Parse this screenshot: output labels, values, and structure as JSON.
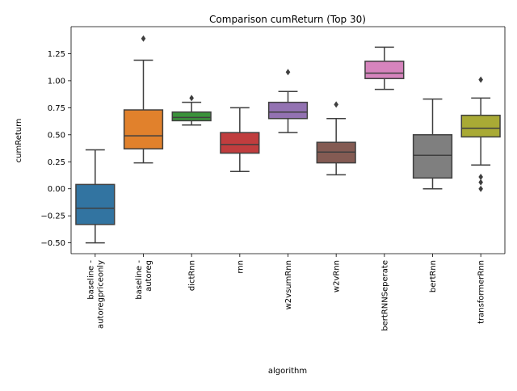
{
  "chart_data": {
    "type": "box",
    "title": "Comparison cumReturn (Top 30)",
    "xlabel": "algorithm",
    "ylabel": "cumReturn",
    "ylim": [
      -0.6,
      1.5
    ],
    "yticks": [
      -0.5,
      -0.25,
      0.0,
      0.25,
      0.5,
      0.75,
      1.0,
      1.25
    ],
    "ytick_labels": [
      "−0.50",
      "−0.25",
      "0.00",
      "0.25",
      "0.50",
      "0.75",
      "1.00",
      "1.25"
    ],
    "grid": false,
    "legend": "none",
    "categories": [
      {
        "label_lines": [
          "baseline -",
          "autoregpriceonly"
        ],
        "color": "#3274a1",
        "whisker_low": -0.5,
        "q1": -0.33,
        "median": -0.18,
        "q3": 0.04,
        "whisker_high": 0.36,
        "outliers": []
      },
      {
        "label_lines": [
          "baseline -",
          "autoreg"
        ],
        "color": "#e1812c",
        "whisker_low": 0.24,
        "q1": 0.37,
        "median": 0.49,
        "q3": 0.73,
        "whisker_high": 1.19,
        "outliers": [
          1.39
        ]
      },
      {
        "label_lines": [
          "dictRnn"
        ],
        "color": "#3a923a",
        "whisker_low": 0.59,
        "q1": 0.63,
        "median": 0.66,
        "q3": 0.71,
        "whisker_high": 0.8,
        "outliers": [
          0.84
        ]
      },
      {
        "label_lines": [
          "rnn"
        ],
        "color": "#c03d3e",
        "whisker_low": 0.16,
        "q1": 0.33,
        "median": 0.41,
        "q3": 0.52,
        "whisker_high": 0.75,
        "outliers": []
      },
      {
        "label_lines": [
          "w2vsumRnn"
        ],
        "color": "#9372b2",
        "whisker_low": 0.52,
        "q1": 0.65,
        "median": 0.71,
        "q3": 0.8,
        "whisker_high": 0.9,
        "outliers": [
          1.08
        ]
      },
      {
        "label_lines": [
          "w2vRnn"
        ],
        "color": "#845b53",
        "whisker_low": 0.13,
        "q1": 0.24,
        "median": 0.34,
        "q3": 0.43,
        "whisker_high": 0.65,
        "outliers": [
          0.78
        ]
      },
      {
        "label_lines": [
          "bertRNNSeperate"
        ],
        "color": "#d684bd",
        "whisker_low": 0.92,
        "q1": 1.02,
        "median": 1.07,
        "q3": 1.18,
        "whisker_high": 1.31,
        "outliers": []
      },
      {
        "label_lines": [
          "bertRnn"
        ],
        "color": "#7f7f7f",
        "whisker_low": 0.0,
        "q1": 0.1,
        "median": 0.31,
        "q3": 0.5,
        "whisker_high": 0.83,
        "outliers": []
      },
      {
        "label_lines": [
          "transformerRnn"
        ],
        "color": "#a9aa35",
        "whisker_low": 0.22,
        "q1": 0.48,
        "median": 0.56,
        "q3": 0.68,
        "whisker_high": 0.84,
        "outliers": [
          1.01,
          0.11,
          0.06,
          0.0
        ]
      }
    ]
  }
}
